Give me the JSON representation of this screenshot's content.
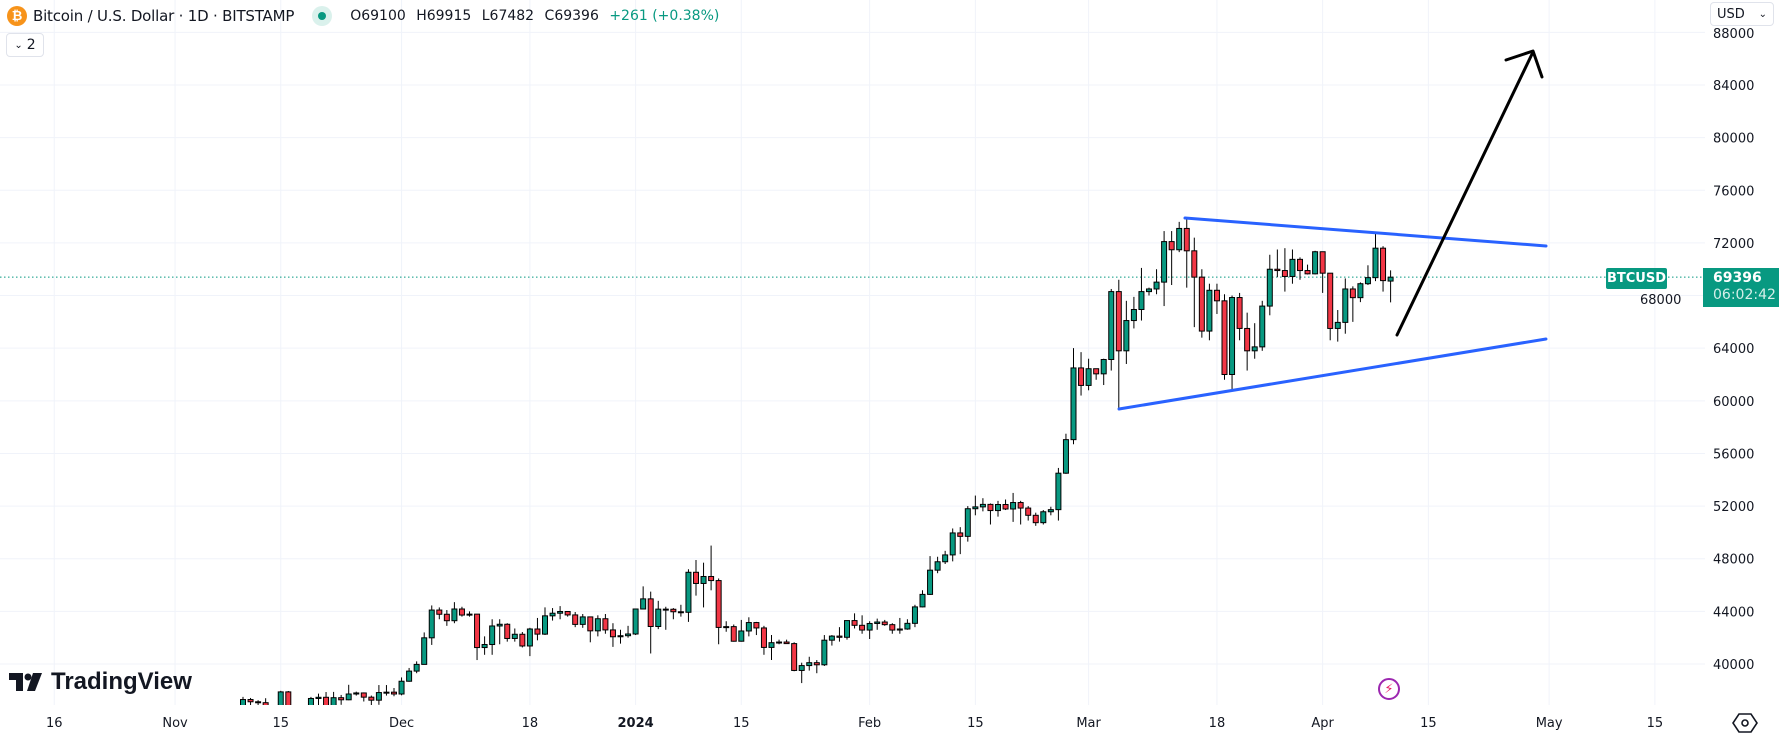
{
  "header": {
    "symbol_title": "Bitcoin / U.S. Dollar · 1D · BITSTAMP",
    "open": "O69100",
    "high": "H69915",
    "low": "L67482",
    "close": "C69396",
    "change": "+261 (+0.38%)",
    "collapse_count": "2",
    "icon": "bitcoin-icon"
  },
  "currency_selector": {
    "value": "USD"
  },
  "price_label": {
    "symbol": "BTCUSD",
    "price": "69396",
    "countdown": "06:02:42"
  },
  "logo": {
    "text": "TradingView"
  },
  "colors": {
    "up": "#089981",
    "down": "#f23645",
    "trendline": "#2962ff",
    "arrow": "#000000",
    "grid": "#f0f3fa",
    "last_price": "#089981"
  },
  "chart_data": {
    "type": "candlestick",
    "interval": "1D",
    "y_ticks": [
      "88000",
      "84000",
      "80000",
      "76000",
      "72000",
      "68000",
      "64000",
      "60000",
      "56000",
      "52000",
      "48000",
      "44000",
      "40000"
    ],
    "x_ticks": [
      "16",
      "Nov",
      "15",
      "Dec",
      "18",
      "2024",
      "15",
      "Feb",
      "15",
      "Mar",
      "18",
      "Apr",
      "15",
      "May",
      "15"
    ],
    "last_price": 69396,
    "candles_ohlc": [
      [
        36700,
        37500,
        36350,
        37300
      ],
      [
        37300,
        37420,
        36750,
        37130
      ],
      [
        37130,
        37250,
        36780,
        37060
      ],
      [
        37060,
        37400,
        36350,
        36490
      ],
      [
        36490,
        36760,
        34980,
        35550
      ],
      [
        35550,
        37960,
        35370,
        37880
      ],
      [
        37880,
        37950,
        35980,
        36160
      ],
      [
        36160,
        36800,
        35900,
        36600
      ],
      [
        36600,
        36850,
        36200,
        36580
      ],
      [
        36580,
        37500,
        36400,
        37380
      ],
      [
        37380,
        37750,
        36700,
        37470
      ],
      [
        37470,
        37870,
        35700,
        35800
      ],
      [
        35800,
        37880,
        35650,
        37440
      ],
      [
        37440,
        37650,
        36900,
        37280
      ],
      [
        37280,
        38420,
        37250,
        37720
      ],
      [
        37720,
        37900,
        37600,
        37800
      ],
      [
        37800,
        37840,
        37150,
        37480
      ],
      [
        37480,
        37600,
        36760,
        37250
      ],
      [
        37250,
        38400,
        36900,
        37830
      ],
      [
        37830,
        38400,
        37600,
        37860
      ],
      [
        37860,
        38180,
        37550,
        37720
      ],
      [
        37720,
        38980,
        37620,
        38690
      ],
      [
        38690,
        39700,
        38650,
        39460
      ],
      [
        39460,
        40200,
        39300,
        39970
      ],
      [
        39970,
        42400,
        39970,
        41990
      ],
      [
        41990,
        44450,
        41450,
        44100
      ],
      [
        44100,
        44300,
        43400,
        43780
      ],
      [
        43780,
        44100,
        42900,
        43290
      ],
      [
        43290,
        44700,
        43100,
        44180
      ],
      [
        44180,
        44350,
        43600,
        43720
      ],
      [
        43720,
        44000,
        43600,
        43790
      ],
      [
        43790,
        43800,
        40300,
        41250
      ],
      [
        41250,
        42100,
        40700,
        41480
      ],
      [
        41480,
        43400,
        40700,
        42890
      ],
      [
        42890,
        43400,
        41500,
        43020
      ],
      [
        43020,
        43100,
        41700,
        41940
      ],
      [
        41940,
        42700,
        41700,
        42260
      ],
      [
        42260,
        42430,
        41260,
        41370
      ],
      [
        41370,
        42750,
        40600,
        42660
      ],
      [
        42660,
        43500,
        41800,
        42270
      ],
      [
        42270,
        44300,
        42200,
        43660
      ],
      [
        43660,
        44250,
        43300,
        43860
      ],
      [
        43860,
        44400,
        43400,
        43990
      ],
      [
        43990,
        44000,
        43600,
        43730
      ],
      [
        43730,
        43950,
        42800,
        43010
      ],
      [
        43010,
        43800,
        42750,
        43580
      ],
      [
        43580,
        43600,
        41650,
        42520
      ],
      [
        42520,
        43700,
        42100,
        43440
      ],
      [
        43440,
        43800,
        42300,
        42590
      ],
      [
        42590,
        43100,
        41300,
        42070
      ],
      [
        42070,
        42600,
        41550,
        42150
      ],
      [
        42150,
        42900,
        42000,
        42280
      ],
      [
        42280,
        44200,
        42200,
        44180
      ],
      [
        44180,
        45900,
        44180,
        44950
      ],
      [
        44950,
        45500,
        40800,
        42850
      ],
      [
        42850,
        44800,
        42650,
        44170
      ],
      [
        44170,
        44350,
        42600,
        44160
      ],
      [
        44160,
        44250,
        43400,
        43970
      ],
      [
        43970,
        44500,
        43600,
        43930
      ],
      [
        43930,
        47200,
        43200,
        46970
      ],
      [
        46970,
        47900,
        45200,
        46120
      ],
      [
        46120,
        47700,
        44300,
        46650
      ],
      [
        46650,
        49000,
        45600,
        46340
      ],
      [
        46340,
        46500,
        41500,
        42780
      ],
      [
        42780,
        43250,
        42450,
        42840
      ],
      [
        42840,
        43000,
        41700,
        41730
      ],
      [
        41730,
        43350,
        41700,
        42510
      ],
      [
        42510,
        43550,
        42100,
        43150
      ],
      [
        43150,
        43200,
        42200,
        42740
      ],
      [
        42740,
        42900,
        40700,
        41260
      ],
      [
        41260,
        42200,
        40300,
        41620
      ],
      [
        41620,
        41850,
        41500,
        41670
      ],
      [
        41670,
        41850,
        41550,
        41550
      ],
      [
        41550,
        41650,
        39450,
        39510
      ],
      [
        39510,
        40100,
        38550,
        39880
      ],
      [
        39880,
        40550,
        39500,
        40100
      ],
      [
        40100,
        40300,
        39300,
        39940
      ],
      [
        39940,
        42200,
        39850,
        41810
      ],
      [
        41810,
        42200,
        41400,
        42120
      ],
      [
        42120,
        42800,
        41700,
        42030
      ],
      [
        42030,
        43300,
        41850,
        43300
      ],
      [
        43300,
        43850,
        42700,
        42940
      ],
      [
        42940,
        43700,
        42300,
        42580
      ],
      [
        42580,
        43250,
        41900,
        43080
      ],
      [
        43080,
        43450,
        42600,
        43190
      ],
      [
        43190,
        43350,
        42900,
        42990
      ],
      [
        42990,
        43100,
        42300,
        42580
      ],
      [
        42580,
        43500,
        42300,
        42660
      ],
      [
        42660,
        43400,
        42600,
        43090
      ],
      [
        43090,
        44500,
        42800,
        44340
      ],
      [
        44340,
        45600,
        44300,
        45290
      ],
      [
        45290,
        48200,
        45250,
        47130
      ],
      [
        47130,
        48150,
        46900,
        47770
      ],
      [
        47770,
        48600,
        47600,
        48290
      ],
      [
        48290,
        50300,
        47800,
        49960
      ],
      [
        49960,
        50400,
        48350,
        49700
      ],
      [
        49700,
        52000,
        49300,
        51800
      ],
      [
        51800,
        52800,
        51300,
        51940
      ],
      [
        51940,
        52600,
        51600,
        52130
      ],
      [
        52130,
        52200,
        50600,
        51660
      ],
      [
        51660,
        52400,
        51200,
        52120
      ],
      [
        52120,
        52500,
        51700,
        51780
      ],
      [
        51780,
        53000,
        50800,
        52270
      ],
      [
        52270,
        52400,
        50600,
        51850
      ],
      [
        51850,
        52000,
        50900,
        51300
      ],
      [
        51300,
        51500,
        50500,
        50740
      ],
      [
        50740,
        51700,
        50600,
        51570
      ],
      [
        51570,
        51950,
        51300,
        51730
      ],
      [
        51730,
        54900,
        50900,
        54500
      ],
      [
        54500,
        57500,
        54450,
        57050
      ],
      [
        57050,
        64000,
        56700,
        62500
      ],
      [
        62500,
        63700,
        60400,
        61170
      ],
      [
        61170,
        63200,
        60800,
        62440
      ],
      [
        62440,
        62450,
        61600,
        62050
      ],
      [
        62050,
        63200,
        61200,
        63140
      ],
      [
        63140,
        68500,
        62300,
        68300
      ],
      [
        68300,
        69200,
        59300,
        63800
      ],
      [
        63800,
        67600,
        62800,
        66100
      ],
      [
        66100,
        67900,
        65500,
        66940
      ],
      [
        66940,
        70100,
        66100,
        68300
      ],
      [
        68300,
        68600,
        68000,
        68500
      ],
      [
        68500,
        70000,
        68100,
        69020
      ],
      [
        69020,
        72900,
        67200,
        72100
      ],
      [
        72100,
        72900,
        68800,
        71480
      ],
      [
        71480,
        73600,
        71300,
        73100
      ],
      [
        73100,
        73800,
        68600,
        71400
      ],
      [
        71400,
        72400,
        65600,
        69400
      ],
      [
        69400,
        70000,
        64800,
        65300
      ],
      [
        65300,
        68900,
        64600,
        68400
      ],
      [
        68400,
        68900,
        66600,
        67600
      ],
      [
        67600,
        68100,
        61600,
        62000
      ],
      [
        62000,
        68000,
        60800,
        67850
      ],
      [
        67850,
        68200,
        64600,
        65500
      ],
      [
        65500,
        66700,
        62300,
        63800
      ],
      [
        63800,
        65900,
        63200,
        64100
      ],
      [
        64100,
        67600,
        63800,
        67200
      ],
      [
        67200,
        71100,
        66500,
        70000
      ],
      [
        70000,
        71500,
        69400,
        69900
      ],
      [
        69900,
        71600,
        68300,
        69450
      ],
      [
        69450,
        71500,
        68900,
        70750
      ],
      [
        70750,
        70900,
        69200,
        69900
      ],
      [
        69900,
        70350,
        69600,
        69650
      ],
      [
        69650,
        71400,
        69600,
        71330
      ],
      [
        71330,
        71330,
        68200,
        69700
      ],
      [
        69700,
        69700,
        64600,
        65500
      ],
      [
        65500,
        66900,
        64500,
        65960
      ],
      [
        65960,
        69300,
        65100,
        68500
      ],
      [
        68500,
        68700,
        66000,
        67840
      ],
      [
        67840,
        69000,
        67500,
        68900
      ],
      [
        68900,
        70300,
        68800,
        69360
      ],
      [
        69360,
        72800,
        69100,
        71600
      ],
      [
        71600,
        71750,
        68300,
        69135
      ],
      [
        69100,
        69915,
        67482,
        69396
      ]
    ]
  }
}
